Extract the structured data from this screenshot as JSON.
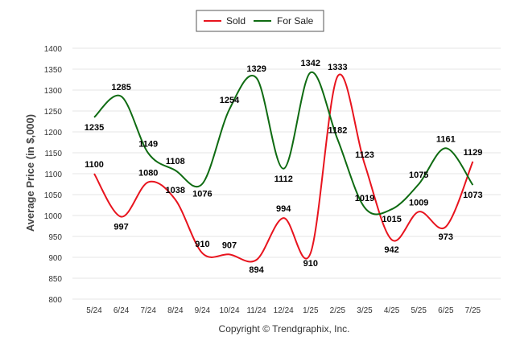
{
  "chart_data": {
    "type": "line",
    "categories": [
      "5/24",
      "6/24",
      "7/24",
      "8/24",
      "9/24",
      "10/24",
      "11/24",
      "12/24",
      "1/25",
      "2/25",
      "3/25",
      "4/25",
      "5/25",
      "6/25",
      "7/25"
    ],
    "series": [
      {
        "name": "Sold",
        "color": "#e8141e",
        "values": [
          1100,
          997,
          1080,
          1038,
          910,
          907,
          894,
          994,
          910,
          1333,
          1123,
          942,
          1009,
          973,
          1129
        ]
      },
      {
        "name": "For Sale",
        "color": "#0f6b12",
        "values": [
          1235,
          1285,
          1149,
          1108,
          1076,
          1254,
          1329,
          1112,
          1342,
          1182,
          1019,
          1015,
          1075,
          1161,
          1073
        ]
      }
    ],
    "ylabel": "Average Price (in $,000)",
    "xlabel": "",
    "ylim": [
      800,
      1400
    ],
    "yticks": [
      800,
      850,
      900,
      950,
      1000,
      1050,
      1100,
      1150,
      1200,
      1250,
      1300,
      1350,
      1400
    ],
    "grid": true,
    "legend_position": "top-center",
    "credit": "Copyright © Trendgraphix, Inc."
  }
}
